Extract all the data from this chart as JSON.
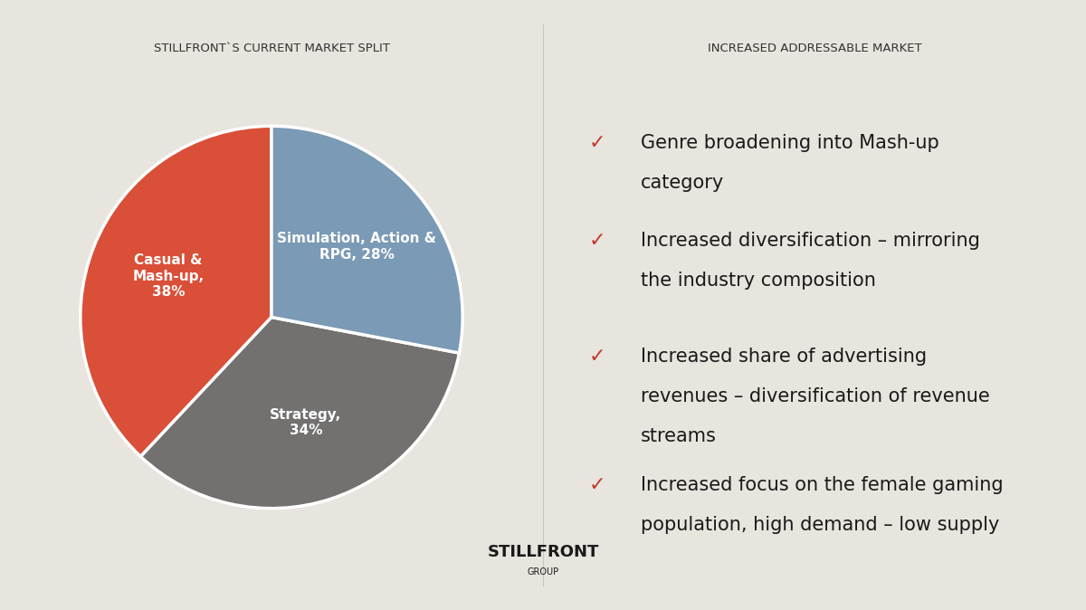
{
  "left_bg_color": "#e8e4de",
  "right_bg_color": "#ffffff",
  "left_title": "STILLFRONT`S CURRENT MARKET SPLIT",
  "right_title": "INCREASED ADDRESSABLE MARKET",
  "title_fontsize": 9.5,
  "title_color": "#333333",
  "pie_values": [
    38,
    34,
    28
  ],
  "pie_labels": [
    "Casual &\nMash-up,\n38%",
    "Strategy,\n34%",
    "Simulation, Action &\nRPG, 28%"
  ],
  "pie_colors": [
    "#d94f38",
    "#737070",
    "#7a9ab5"
  ],
  "pie_label_fontsize": 11,
  "pie_label_color": "#ffffff",
  "pie_startangle": 90,
  "bullet_color": "#c0392b",
  "bullet_char": "✓",
  "bullet_fontsize": 16,
  "text_fontsize": 15,
  "text_color": "#1a1a1a",
  "bullets": [
    [
      "Genre broadening into Mash-up",
      "category"
    ],
    [
      "Increased diversification – mirroring",
      "the industry composition"
    ],
    [
      "Increased share of advertising",
      "revenues – diversification of revenue",
      "streams"
    ],
    [
      "Increased focus on the female gaming",
      "population, high demand – low supply"
    ]
  ],
  "logo_text": "STILLFRONT",
  "logo_sub": "GROUP",
  "logo_fontsize": 13,
  "logo_sub_fontsize": 7
}
